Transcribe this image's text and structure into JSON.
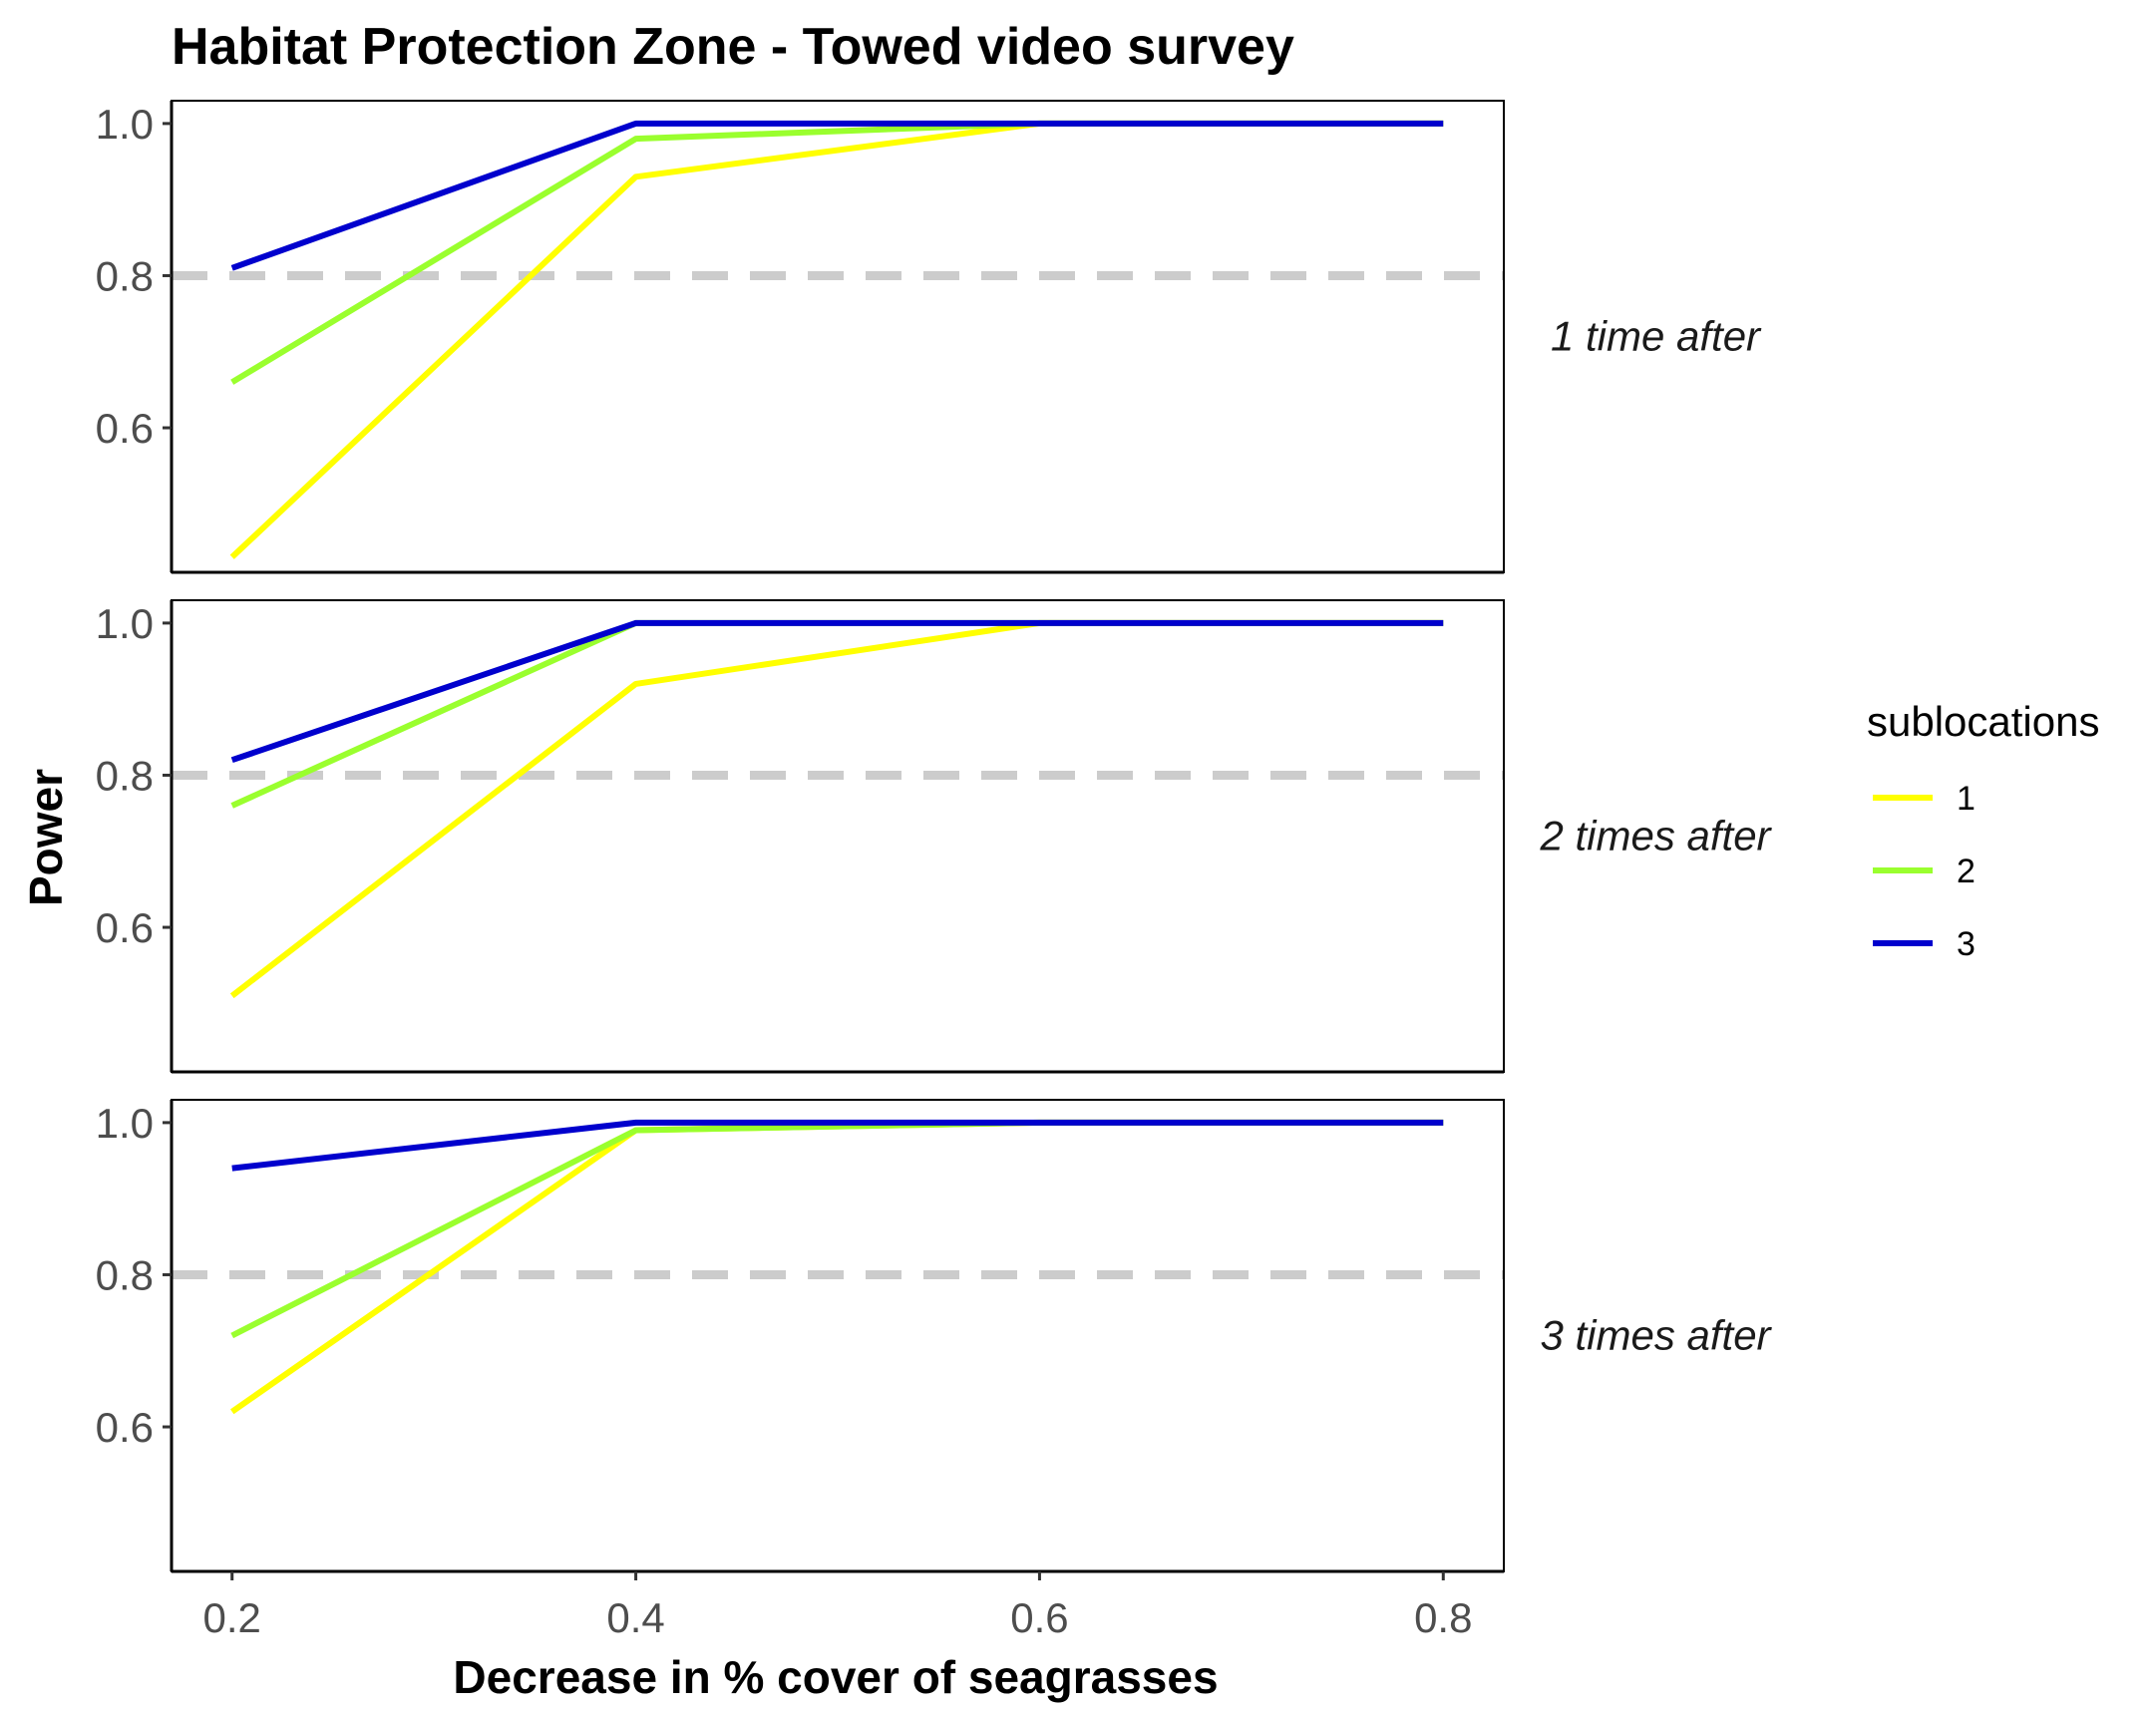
{
  "chart_data": {
    "type": "line",
    "title": "Habitat Protection Zone - Towed video survey",
    "xlabel": "Decrease in % cover of seagrasses",
    "ylabel": "Power",
    "x": [
      0.2,
      0.4,
      0.6,
      0.8
    ],
    "x_ticks": [
      "0.2",
      "0.4",
      "0.6",
      "0.8"
    ],
    "y_ticks": [
      "0.6",
      "0.8",
      "1.0"
    ],
    "xlim": [
      0.17,
      0.83
    ],
    "ylim": [
      0.41,
      1.03
    ],
    "reference_line": {
      "y": 0.8,
      "style": "dashed",
      "color": "#cccccc"
    },
    "legend": {
      "title": "sublocations",
      "placement": "right"
    },
    "series_colors": {
      "1": "#ffff00",
      "2": "#9aff2e",
      "3": "#0000cd"
    },
    "panels": [
      {
        "label": "1 time after",
        "series": [
          {
            "name": "1",
            "values": [
              0.43,
              0.93,
              1.0,
              1.0
            ]
          },
          {
            "name": "2",
            "values": [
              0.66,
              0.98,
              1.0,
              1.0
            ]
          },
          {
            "name": "3",
            "values": [
              0.81,
              1.0,
              1.0,
              1.0
            ]
          }
        ]
      },
      {
        "label": "2 times after",
        "series": [
          {
            "name": "1",
            "values": [
              0.51,
              0.92,
              1.0,
              1.0
            ]
          },
          {
            "name": "2",
            "values": [
              0.76,
              1.0,
              1.0,
              1.0
            ]
          },
          {
            "name": "3",
            "values": [
              0.82,
              1.0,
              1.0,
              1.0
            ]
          }
        ]
      },
      {
        "label": "3 times after",
        "series": [
          {
            "name": "1",
            "values": [
              0.62,
              0.99,
              1.0,
              1.0
            ]
          },
          {
            "name": "2",
            "values": [
              0.72,
              0.99,
              1.0,
              1.0
            ]
          },
          {
            "name": "3",
            "values": [
              0.94,
              1.0,
              1.0,
              1.0
            ]
          }
        ]
      }
    ]
  }
}
